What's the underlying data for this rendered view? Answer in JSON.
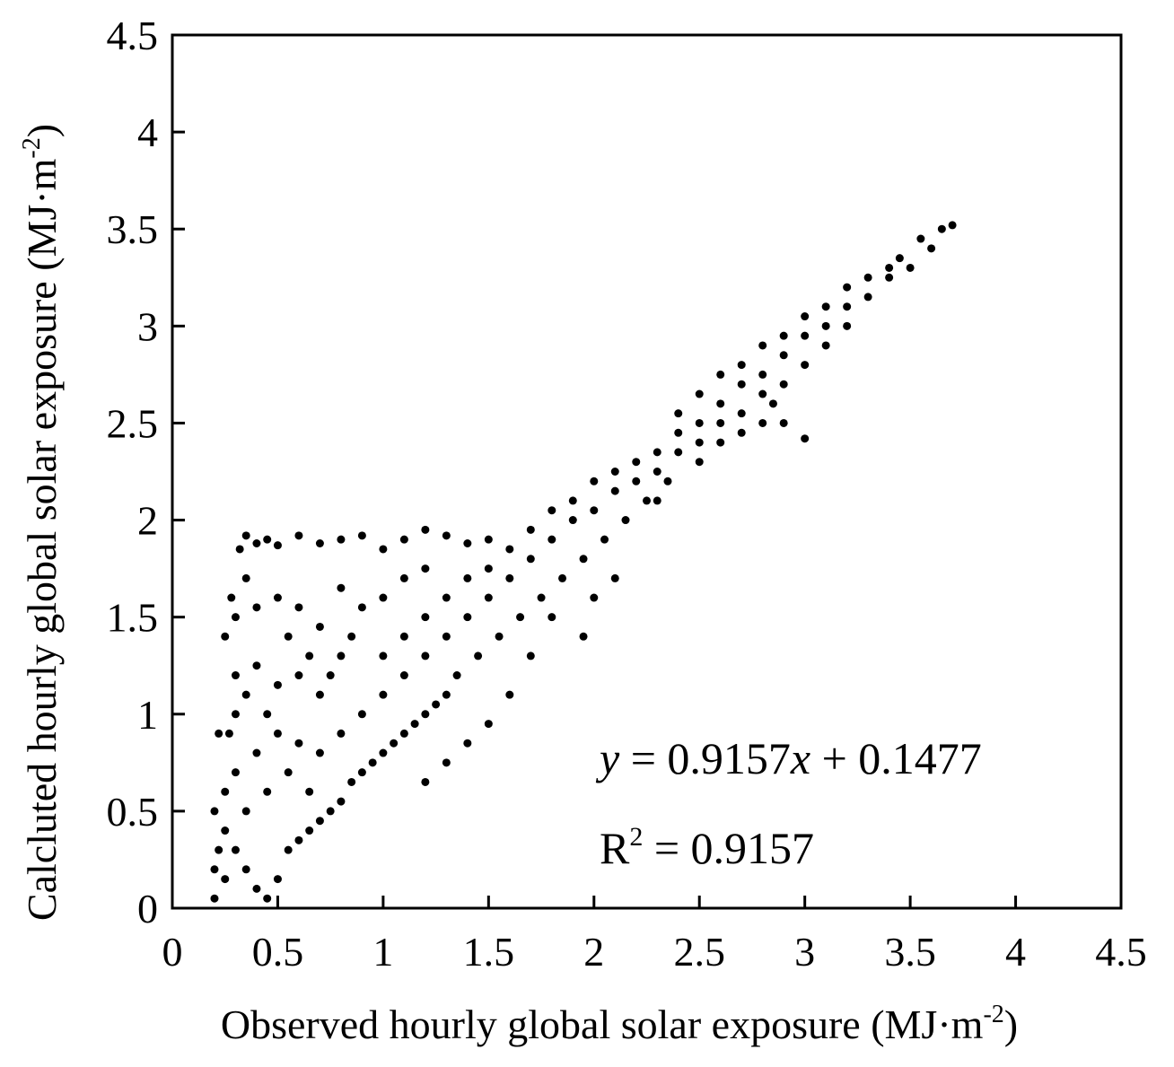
{
  "chart_data": {
    "type": "scatter",
    "xlabel": "Observed hourly global solar exposure (MJ·m⁻²)",
    "ylabel": "Calcluted hourly global solar exposure (MJ·m⁻²)",
    "xlabel_parts": {
      "main": "Observed hourly global solar exposure (MJ·m",
      "sup": "-2",
      "close": ")"
    },
    "ylabel_parts": {
      "main": "Calcluted hourly global solar exposure (MJ·m",
      "sup": "-2",
      "close": ")"
    },
    "xlim": [
      0,
      4.5
    ],
    "ylim": [
      0,
      4.5
    ],
    "xticks": [
      "0",
      "0.5",
      "1",
      "1.5",
      "2",
      "2.5",
      "3",
      "3.5",
      "4",
      "4.5"
    ],
    "yticks": [
      "0",
      "0.5",
      "1",
      "1.5",
      "2",
      "2.5",
      "3",
      "3.5",
      "4",
      "4.5"
    ],
    "grid": false,
    "marker_color": "#000000",
    "annotations": {
      "equation": {
        "y": "y",
        "rest": " = 0.9157",
        "x": "x",
        "tail": " + 0.1477"
      },
      "r2": {
        "R": "R",
        "sup": "2",
        "rest": " = 0.9157"
      }
    },
    "regression": {
      "slope": 0.9157,
      "intercept": 0.1477,
      "r2": 0.9157
    },
    "series": [
      {
        "points": [
          [
            0.2,
            0.05
          ],
          [
            0.22,
            0.3
          ],
          [
            0.25,
            0.6
          ],
          [
            0.27,
            0.9
          ],
          [
            0.3,
            1.2
          ],
          [
            0.3,
            1.5
          ],
          [
            0.32,
            1.85
          ],
          [
            0.35,
            1.92
          ],
          [
            0.4,
            1.88
          ],
          [
            0.45,
            1.9
          ],
          [
            0.5,
            1.87
          ],
          [
            0.6,
            1.92
          ],
          [
            0.7,
            1.88
          ],
          [
            0.8,
            1.9
          ],
          [
            0.9,
            1.92
          ],
          [
            1.0,
            1.85
          ],
          [
            1.1,
            1.9
          ],
          [
            1.2,
            1.95
          ],
          [
            1.3,
            1.92
          ],
          [
            1.4,
            1.88
          ],
          [
            1.5,
            1.9
          ],
          [
            0.25,
            1.4
          ],
          [
            0.28,
            1.6
          ],
          [
            0.35,
            1.7
          ],
          [
            0.4,
            1.55
          ],
          [
            0.5,
            1.6
          ],
          [
            0.55,
            1.4
          ],
          [
            0.6,
            1.55
          ],
          [
            0.7,
            1.45
          ],
          [
            0.8,
            1.65
          ],
          [
            0.9,
            1.55
          ],
          [
            1.0,
            1.6
          ],
          [
            1.1,
            1.7
          ],
          [
            1.2,
            1.75
          ],
          [
            0.22,
            0.9
          ],
          [
            0.3,
            1.0
          ],
          [
            0.35,
            1.1
          ],
          [
            0.4,
            1.25
          ],
          [
            0.45,
            1.0
          ],
          [
            0.5,
            1.15
          ],
          [
            0.6,
            1.2
          ],
          [
            0.65,
            1.3
          ],
          [
            0.7,
            1.1
          ],
          [
            0.75,
            1.2
          ],
          [
            0.8,
            1.3
          ],
          [
            0.85,
            1.4
          ],
          [
            0.2,
            0.5
          ],
          [
            0.25,
            0.4
          ],
          [
            0.3,
            0.7
          ],
          [
            0.35,
            0.5
          ],
          [
            0.4,
            0.8
          ],
          [
            0.45,
            0.6
          ],
          [
            0.5,
            0.9
          ],
          [
            0.55,
            0.7
          ],
          [
            0.6,
            0.85
          ],
          [
            0.65,
            0.6
          ],
          [
            0.7,
            0.8
          ],
          [
            0.2,
            0.2
          ],
          [
            0.25,
            0.15
          ],
          [
            0.3,
            0.3
          ],
          [
            0.35,
            0.2
          ],
          [
            0.4,
            0.1
          ],
          [
            0.45,
            0.05
          ],
          [
            0.5,
            0.15
          ],
          [
            0.55,
            0.3
          ],
          [
            0.6,
            0.35
          ],
          [
            0.65,
            0.4
          ],
          [
            0.7,
            0.45
          ],
          [
            0.75,
            0.5
          ],
          [
            0.8,
            0.55
          ],
          [
            0.85,
            0.65
          ],
          [
            0.9,
            0.7
          ],
          [
            0.95,
            0.75
          ],
          [
            1.0,
            0.8
          ],
          [
            1.05,
            0.85
          ],
          [
            1.1,
            0.9
          ],
          [
            1.15,
            0.95
          ],
          [
            1.2,
            1.0
          ],
          [
            1.25,
            1.05
          ],
          [
            1.3,
            1.1
          ],
          [
            0.8,
            0.9
          ],
          [
            0.9,
            1.0
          ],
          [
            1.0,
            1.1
          ],
          [
            1.1,
            1.2
          ],
          [
            1.2,
            1.3
          ],
          [
            1.3,
            1.4
          ],
          [
            1.4,
            1.5
          ],
          [
            1.5,
            1.6
          ],
          [
            1.6,
            1.7
          ],
          [
            1.7,
            1.8
          ],
          [
            1.8,
            1.9
          ],
          [
            1.9,
            2.0
          ],
          [
            1.0,
            1.3
          ],
          [
            1.1,
            1.4
          ],
          [
            1.2,
            1.5
          ],
          [
            1.3,
            1.6
          ],
          [
            1.4,
            1.7
          ],
          [
            1.5,
            1.75
          ],
          [
            1.6,
            1.85
          ],
          [
            1.7,
            1.95
          ],
          [
            1.8,
            2.05
          ],
          [
            1.9,
            2.1
          ],
          [
            2.0,
            2.2
          ],
          [
            2.1,
            2.25
          ],
          [
            1.35,
            1.2
          ],
          [
            1.45,
            1.3
          ],
          [
            1.55,
            1.4
          ],
          [
            1.65,
            1.5
          ],
          [
            1.75,
            1.6
          ],
          [
            1.85,
            1.7
          ],
          [
            1.95,
            1.8
          ],
          [
            2.05,
            1.9
          ],
          [
            2.15,
            2.0
          ],
          [
            2.25,
            2.1
          ],
          [
            2.35,
            2.2
          ],
          [
            2.0,
            2.05
          ],
          [
            2.1,
            2.15
          ],
          [
            2.2,
            2.3
          ],
          [
            2.3,
            2.35
          ],
          [
            2.4,
            2.45
          ],
          [
            2.5,
            2.5
          ],
          [
            2.6,
            2.6
          ],
          [
            2.7,
            2.7
          ],
          [
            2.8,
            2.75
          ],
          [
            2.9,
            2.85
          ],
          [
            3.0,
            2.95
          ],
          [
            2.2,
            2.2
          ],
          [
            2.3,
            2.25
          ],
          [
            2.4,
            2.35
          ],
          [
            2.5,
            2.4
          ],
          [
            2.6,
            2.5
          ],
          [
            2.7,
            2.55
          ],
          [
            2.8,
            2.65
          ],
          [
            2.9,
            2.7
          ],
          [
            3.0,
            2.8
          ],
          [
            3.1,
            2.9
          ],
          [
            3.2,
            3.0
          ],
          [
            2.4,
            2.55
          ],
          [
            2.5,
            2.65
          ],
          [
            2.6,
            2.75
          ],
          [
            2.7,
            2.8
          ],
          [
            2.8,
            2.9
          ],
          [
            2.9,
            2.95
          ],
          [
            3.0,
            3.05
          ],
          [
            3.1,
            3.1
          ],
          [
            3.2,
            3.2
          ],
          [
            3.3,
            3.25
          ],
          [
            3.4,
            3.3
          ],
          [
            3.1,
            3.0
          ],
          [
            3.2,
            3.1
          ],
          [
            3.3,
            3.15
          ],
          [
            3.4,
            3.25
          ],
          [
            3.5,
            3.3
          ],
          [
            3.6,
            3.4
          ],
          [
            3.65,
            3.5
          ],
          [
            3.7,
            3.52
          ],
          [
            3.55,
            3.45
          ],
          [
            3.45,
            3.35
          ],
          [
            2.8,
            2.5
          ],
          [
            2.9,
            2.5
          ],
          [
            3.0,
            2.42
          ],
          [
            2.85,
            2.6
          ],
          [
            2.6,
            2.4
          ],
          [
            2.7,
            2.45
          ],
          [
            2.5,
            2.3
          ],
          [
            2.3,
            2.1
          ],
          [
            2.1,
            1.7
          ],
          [
            2.0,
            1.6
          ],
          [
            1.95,
            1.4
          ],
          [
            1.8,
            1.5
          ],
          [
            1.7,
            1.3
          ],
          [
            1.6,
            1.1
          ],
          [
            1.5,
            0.95
          ],
          [
            1.4,
            0.85
          ],
          [
            1.3,
            0.75
          ],
          [
            1.2,
            0.65
          ]
        ]
      }
    ]
  }
}
